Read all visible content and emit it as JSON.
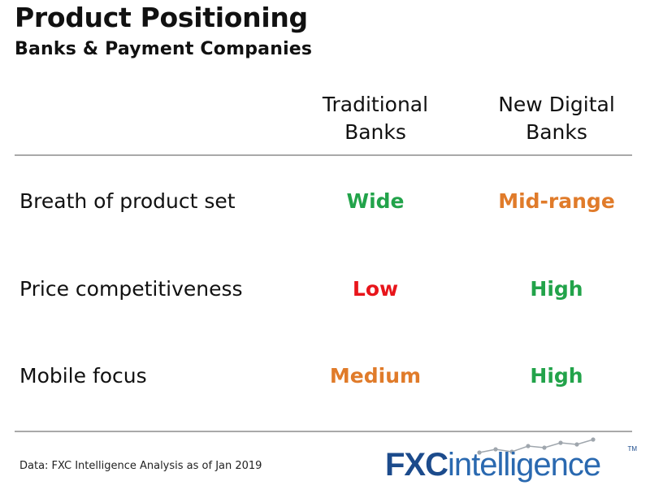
{
  "title": "Product Positioning",
  "subtitle": "Banks & Payment Companies",
  "columns": [
    {
      "line1": "Traditional",
      "line2": "Banks"
    },
    {
      "line1": "New Digital",
      "line2": "Banks"
    }
  ],
  "rows": [
    {
      "label": "Breath of product set",
      "values": [
        {
          "text": "Wide",
          "color": "#22a34a"
        },
        {
          "text": "Mid-range",
          "color": "#e07b2a"
        }
      ]
    },
    {
      "label": "Price competitiveness",
      "values": [
        {
          "text": "Low",
          "color": "#e8151b"
        },
        {
          "text": "High",
          "color": "#22a34a"
        }
      ]
    },
    {
      "label": "Mobile focus",
      "values": [
        {
          "text": "Medium",
          "color": "#e07b2a"
        },
        {
          "text": "High",
          "color": "#22a34a"
        }
      ]
    }
  ],
  "footnote": "Data: FXC Intelligence Analysis as of Jan 2019",
  "logo": {
    "fxc": "FXC",
    "rest": "intelligence",
    "tm": "TM",
    "primary_color": "#1c4b8c",
    "secondary_color": "#2a69b0"
  }
}
